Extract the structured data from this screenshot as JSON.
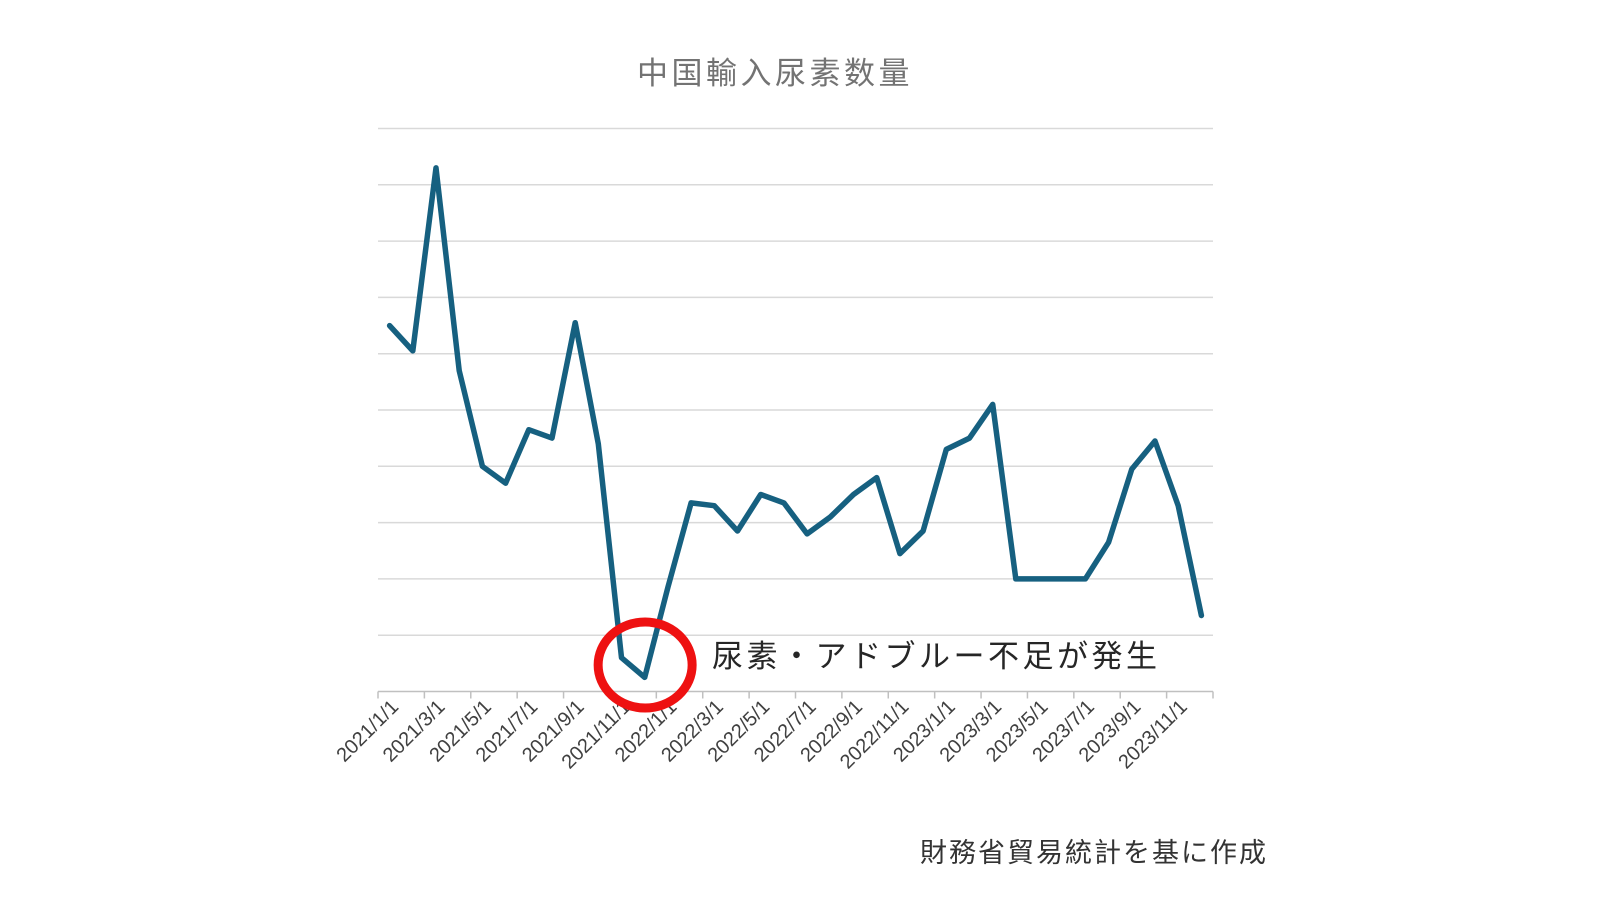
{
  "title": "中国輸入尿素数量",
  "annotation": {
    "text": "尿素・アドブルー不足が発生"
  },
  "source_note": "財務省貿易統計を基に作成",
  "colors": {
    "line": "#166080",
    "gridline": "#d9d9d9",
    "axis": "#c0c0c0",
    "title_text": "#737373",
    "tick_label_text": "#404040",
    "annotation_text": "#262626",
    "source_text": "#333333",
    "highlight_circle": "#ee1111"
  },
  "chart_data": {
    "type": "line",
    "title": "中国輸入尿素数量",
    "xlabel": "",
    "ylabel": "",
    "legend": "none",
    "grid": "horizontal",
    "y_axis_labels_visible": false,
    "value_scale_note": "y-axis is unlabeled; values estimated in gridline units (1 unit = 1 horizontal gridline interval)",
    "ylim": [
      0,
      10
    ],
    "categories": [
      "2021/1/1",
      "2021/2/1",
      "2021/3/1",
      "2021/4/1",
      "2021/5/1",
      "2021/6/1",
      "2021/7/1",
      "2021/8/1",
      "2021/9/1",
      "2021/10/1",
      "2021/11/1",
      "2021/12/1",
      "2022/1/1",
      "2022/2/1",
      "2022/3/1",
      "2022/4/1",
      "2022/5/1",
      "2022/6/1",
      "2022/7/1",
      "2022/8/1",
      "2022/9/1",
      "2022/10/1",
      "2022/11/1",
      "2022/12/1",
      "2023/1/1",
      "2023/2/1",
      "2023/3/1",
      "2023/4/1",
      "2023/5/1",
      "2023/6/1",
      "2023/7/1",
      "2023/8/1",
      "2023/9/1",
      "2023/10/1",
      "2023/11/1",
      "2023/12/1"
    ],
    "x_tick_labels": [
      "2021/1/1",
      "2021/3/1",
      "2021/5/1",
      "2021/7/1",
      "2021/9/1",
      "2021/11/1",
      "2022/1/1",
      "2022/3/1",
      "2022/5/1",
      "2022/7/1",
      "2022/9/1",
      "2022/11/1",
      "2023/1/1",
      "2023/3/1",
      "2023/5/1",
      "2023/7/1",
      "2023/9/1",
      "2023/11/1"
    ],
    "values": [
      6.5,
      6.05,
      9.3,
      5.7,
      4.0,
      3.7,
      4.65,
      4.5,
      6.55,
      4.4,
      0.6,
      0.25,
      1.85,
      3.35,
      3.3,
      2.85,
      3.5,
      3.35,
      2.8,
      3.1,
      3.5,
      3.8,
      2.45,
      2.85,
      4.3,
      4.5,
      5.1,
      2.0,
      2.0,
      2.0,
      2.0,
      2.65,
      3.95,
      4.45,
      3.3,
      1.35
    ],
    "highlight": {
      "shape": "ellipse",
      "around_categories": [
        "2021/11/1",
        "2021/12/1"
      ],
      "label": "尿素・アドブルー不足が発生"
    }
  }
}
